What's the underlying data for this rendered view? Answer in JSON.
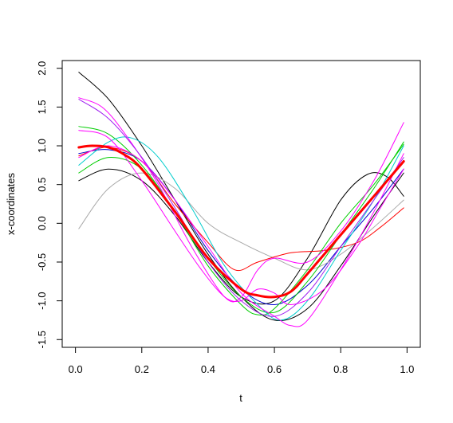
{
  "chart_data": {
    "type": "line",
    "xlabel": "t",
    "ylabel": "x-coordinates",
    "xlim": [
      -0.04,
      1.04
    ],
    "ylim": [
      -1.6,
      2.1
    ],
    "xticks": [
      {
        "value": 0,
        "label": "0.0"
      },
      {
        "value": 0.2,
        "label": "0.2"
      },
      {
        "value": 0.4,
        "label": "0.4"
      },
      {
        "value": 0.6,
        "label": "0.6"
      },
      {
        "value": 0.8,
        "label": "0.8"
      },
      {
        "value": 1,
        "label": "1.0"
      }
    ],
    "yticks": [
      {
        "value": -1.5,
        "label": "-1.5"
      },
      {
        "value": -1.0,
        "label": "-1.0"
      },
      {
        "value": -0.5,
        "label": "-0.5"
      },
      {
        "value": 0,
        "label": "0.0"
      },
      {
        "value": 0.5,
        "label": "0.5"
      },
      {
        "value": 1.0,
        "label": "1.0"
      },
      {
        "value": 1.5,
        "label": "1.5"
      },
      {
        "value": 2.0,
        "label": "2.0"
      }
    ],
    "grid": false,
    "legend": "none",
    "series": [
      {
        "color": "#000000",
        "width": 1,
        "points": [
          [
            0.01,
            1.95
          ],
          [
            0.1,
            1.6
          ],
          [
            0.2,
            1.0
          ],
          [
            0.3,
            0.3
          ],
          [
            0.4,
            -0.4
          ],
          [
            0.5,
            -0.95
          ],
          [
            0.6,
            -1.25
          ],
          [
            0.7,
            -1.1
          ],
          [
            0.8,
            -0.55
          ],
          [
            0.9,
            0.1
          ],
          [
            0.99,
            0.65
          ]
        ]
      },
      {
        "color": "#000000",
        "width": 1,
        "points": [
          [
            0.01,
            0.55
          ],
          [
            0.1,
            0.7
          ],
          [
            0.2,
            0.55
          ],
          [
            0.3,
            0.1
          ],
          [
            0.4,
            -0.5
          ],
          [
            0.5,
            -0.95
          ],
          [
            0.6,
            -1.0
          ],
          [
            0.7,
            -0.45
          ],
          [
            0.8,
            0.3
          ],
          [
            0.88,
            0.63
          ],
          [
            0.94,
            0.6
          ],
          [
            0.99,
            0.35
          ]
        ]
      },
      {
        "color": "#0000cd",
        "width": 1,
        "points": [
          [
            0.01,
            0.9
          ],
          [
            0.1,
            0.95
          ],
          [
            0.2,
            0.8
          ],
          [
            0.3,
            0.3
          ],
          [
            0.4,
            -0.35
          ],
          [
            0.5,
            -0.85
          ],
          [
            0.6,
            -1.05
          ],
          [
            0.7,
            -0.8
          ],
          [
            0.8,
            -0.3
          ],
          [
            0.9,
            0.2
          ],
          [
            0.99,
            0.7
          ]
        ]
      },
      {
        "color": "#a9a9a9",
        "width": 1,
        "points": [
          [
            0.01,
            -0.07
          ],
          [
            0.1,
            0.45
          ],
          [
            0.2,
            0.65
          ],
          [
            0.3,
            0.45
          ],
          [
            0.4,
            0.0
          ],
          [
            0.5,
            -0.25
          ],
          [
            0.6,
            -0.45
          ],
          [
            0.7,
            -0.6
          ],
          [
            0.8,
            -0.4
          ],
          [
            0.9,
            -0.05
          ],
          [
            0.99,
            0.3
          ]
        ]
      },
      {
        "color": "#ff0000",
        "width": 1,
        "points": [
          [
            0.01,
            0.87
          ],
          [
            0.1,
            0.98
          ],
          [
            0.2,
            0.8
          ],
          [
            0.3,
            0.25
          ],
          [
            0.4,
            -0.25
          ],
          [
            0.48,
            -0.6
          ],
          [
            0.55,
            -0.5
          ],
          [
            0.65,
            -0.38
          ],
          [
            0.75,
            -0.35
          ],
          [
            0.85,
            -0.25
          ],
          [
            0.92,
            -0.05
          ],
          [
            0.99,
            0.2
          ]
        ]
      },
      {
        "color": "#00cd00",
        "width": 1,
        "points": [
          [
            0.01,
            1.25
          ],
          [
            0.1,
            1.15
          ],
          [
            0.2,
            0.75
          ],
          [
            0.3,
            0.15
          ],
          [
            0.4,
            -0.55
          ],
          [
            0.5,
            -1.05
          ],
          [
            0.55,
            -1.18
          ],
          [
            0.6,
            -1.1
          ],
          [
            0.7,
            -0.6
          ],
          [
            0.8,
            0.0
          ],
          [
            0.9,
            0.5
          ],
          [
            0.99,
            1.02
          ]
        ]
      },
      {
        "color": "#00cd00",
        "width": 1,
        "points": [
          [
            0.01,
            0.65
          ],
          [
            0.1,
            0.85
          ],
          [
            0.2,
            0.7
          ],
          [
            0.3,
            0.15
          ],
          [
            0.4,
            -0.45
          ],
          [
            0.5,
            -0.95
          ],
          [
            0.6,
            -1.15
          ],
          [
            0.7,
            -0.75
          ],
          [
            0.8,
            -0.15
          ],
          [
            0.9,
            0.45
          ],
          [
            0.99,
            1.05
          ]
        ]
      },
      {
        "color": "#00cdcd",
        "width": 1,
        "points": [
          [
            0.01,
            0.75
          ],
          [
            0.1,
            1.05
          ],
          [
            0.17,
            1.1
          ],
          [
            0.25,
            0.85
          ],
          [
            0.35,
            0.2
          ],
          [
            0.45,
            -0.55
          ],
          [
            0.55,
            -1.05
          ],
          [
            0.62,
            -1.25
          ],
          [
            0.7,
            -1.0
          ],
          [
            0.8,
            -0.35
          ],
          [
            0.9,
            0.3
          ],
          [
            0.99,
            1.0
          ]
        ]
      },
      {
        "color": "#ff00ff",
        "width": 1,
        "points": [
          [
            0.01,
            1.62
          ],
          [
            0.08,
            1.5
          ],
          [
            0.15,
            1.15
          ],
          [
            0.25,
            0.5
          ],
          [
            0.35,
            -0.3
          ],
          [
            0.45,
            -0.95
          ],
          [
            0.5,
            -0.95
          ],
          [
            0.55,
            -0.6
          ],
          [
            0.6,
            -0.45
          ],
          [
            0.7,
            -0.5
          ],
          [
            0.8,
            -0.1
          ],
          [
            0.9,
            0.55
          ],
          [
            0.99,
            1.3
          ]
        ]
      },
      {
        "color": "#ff00ff",
        "width": 1,
        "points": [
          [
            0.01,
            1.2
          ],
          [
            0.1,
            1.1
          ],
          [
            0.2,
            0.55
          ],
          [
            0.3,
            -0.1
          ],
          [
            0.38,
            -0.6
          ],
          [
            0.45,
            -0.95
          ],
          [
            0.5,
            -1.0
          ],
          [
            0.55,
            -0.85
          ],
          [
            0.6,
            -0.9
          ],
          [
            0.65,
            -1.05
          ],
          [
            0.75,
            -0.85
          ],
          [
            0.85,
            -0.3
          ],
          [
            0.92,
            0.2
          ],
          [
            0.99,
            0.7
          ]
        ]
      },
      {
        "color": "#ff00ff",
        "width": 1,
        "points": [
          [
            0.01,
            0.85
          ],
          [
            0.1,
            1.0
          ],
          [
            0.2,
            0.8
          ],
          [
            0.3,
            0.3
          ],
          [
            0.4,
            -0.3
          ],
          [
            0.5,
            -0.9
          ],
          [
            0.6,
            -1.2
          ],
          [
            0.65,
            -1.32
          ],
          [
            0.7,
            -1.25
          ],
          [
            0.8,
            -0.6
          ],
          [
            0.9,
            0.15
          ],
          [
            0.99,
            0.9
          ]
        ]
      },
      {
        "color": "#a020f0",
        "width": 1,
        "points": [
          [
            0.01,
            1.6
          ],
          [
            0.1,
            1.35
          ],
          [
            0.2,
            0.85
          ],
          [
            0.3,
            0.2
          ],
          [
            0.4,
            -0.5
          ],
          [
            0.5,
            -1.0
          ],
          [
            0.6,
            -1.2
          ],
          [
            0.7,
            -0.9
          ],
          [
            0.8,
            -0.3
          ],
          [
            0.9,
            0.3
          ],
          [
            0.99,
            0.85
          ]
        ]
      },
      {
        "color": "#ff0000",
        "width": 3,
        "points": [
          [
            0.01,
            0.98
          ],
          [
            0.05,
            1.0
          ],
          [
            0.1,
            0.98
          ],
          [
            0.15,
            0.88
          ],
          [
            0.2,
            0.7
          ],
          [
            0.3,
            0.15
          ],
          [
            0.4,
            -0.45
          ],
          [
            0.5,
            -0.85
          ],
          [
            0.55,
            -0.93
          ],
          [
            0.6,
            -0.95
          ],
          [
            0.65,
            -0.88
          ],
          [
            0.7,
            -0.65
          ],
          [
            0.8,
            -0.15
          ],
          [
            0.9,
            0.35
          ],
          [
            0.99,
            0.8
          ]
        ]
      }
    ]
  }
}
